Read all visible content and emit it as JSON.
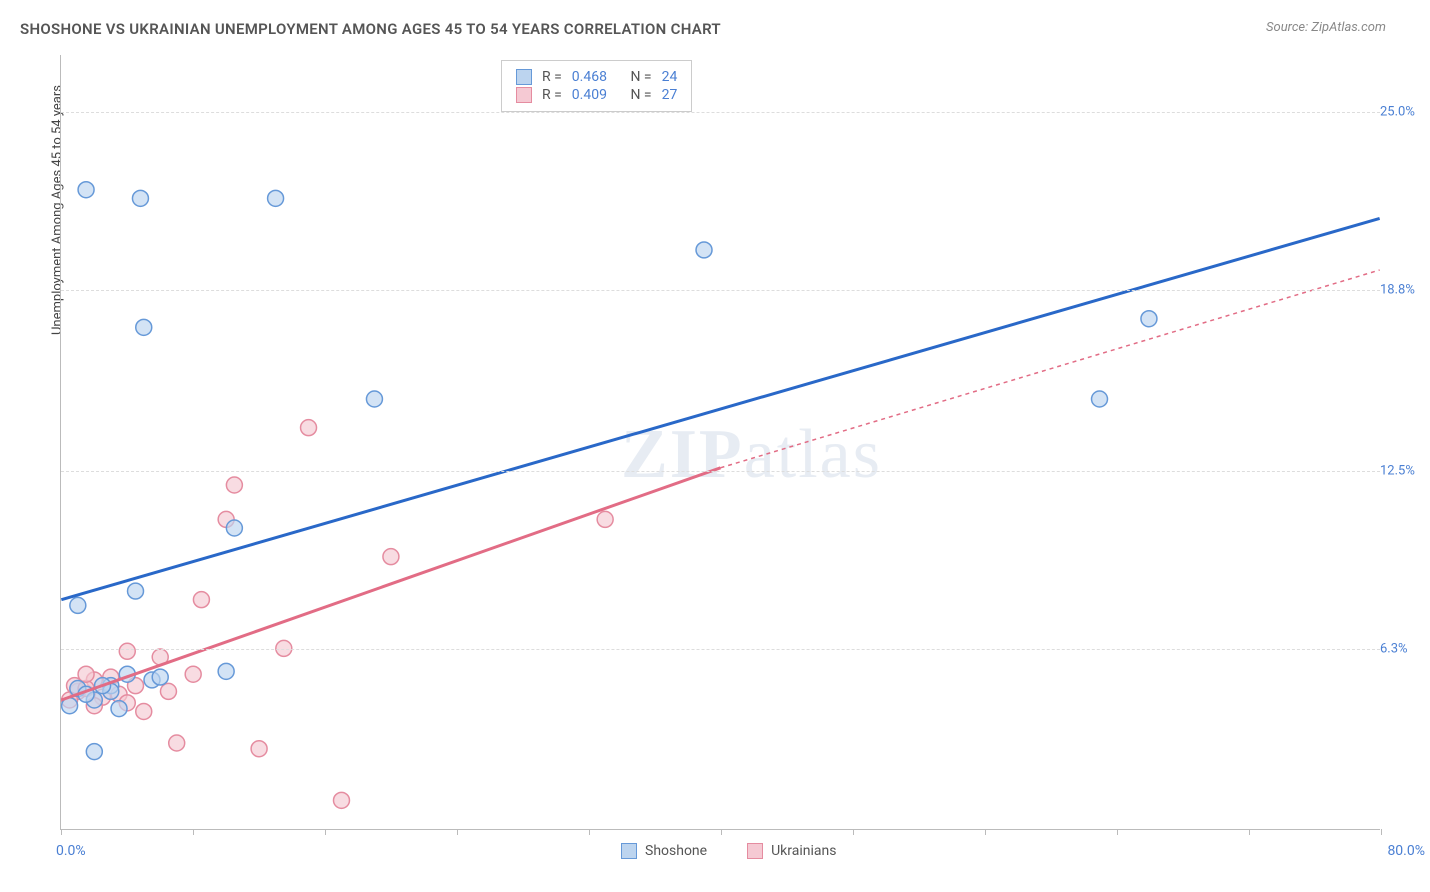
{
  "header": {
    "title": "SHOSHONE VS UKRAINIAN UNEMPLOYMENT AMONG AGES 45 TO 54 YEARS CORRELATION CHART",
    "source": "Source: ZipAtlas.com"
  },
  "y_axis_label": "Unemployment Among Ages 45 to 54 years",
  "chart": {
    "type": "scatter",
    "xlim": [
      0,
      80
    ],
    "ylim": [
      0,
      27
    ],
    "x_limit_labels": {
      "min": "0.0%",
      "max": "80.0%"
    },
    "y_ticks": [
      {
        "val": 6.3,
        "label": "6.3%"
      },
      {
        "val": 12.5,
        "label": "12.5%"
      },
      {
        "val": 18.8,
        "label": "18.8%"
      },
      {
        "val": 25.0,
        "label": "25.0%"
      }
    ],
    "x_tick_positions": [
      0,
      8,
      16,
      24,
      32,
      40,
      48,
      56,
      64,
      72,
      80
    ],
    "grid_color": "#dddddd",
    "background_color": "#ffffff",
    "marker_radius": 8,
    "marker_stroke_width": 1.5,
    "trend_line_width": 3,
    "series": {
      "shoshone": {
        "label": "Shoshone",
        "fill": "#bcd4ef",
        "stroke": "#6699d8",
        "line_color": "#2968c8",
        "line_dash": "none",
        "stats": {
          "R": "0.468",
          "N": "24"
        },
        "trend": {
          "x1": 0,
          "y1": 8.0,
          "x2": 80,
          "y2": 21.3
        },
        "points": [
          [
            1.5,
            22.3
          ],
          [
            4.8,
            22.0
          ],
          [
            13.0,
            22.0
          ],
          [
            5.0,
            17.5
          ],
          [
            19.0,
            15.0
          ],
          [
            39.0,
            20.2
          ],
          [
            66.0,
            17.8
          ],
          [
            63.0,
            15.0
          ],
          [
            10.5,
            10.5
          ],
          [
            1.0,
            7.8
          ],
          [
            4.5,
            8.3
          ],
          [
            10.0,
            5.5
          ],
          [
            3.0,
            5.0
          ],
          [
            5.5,
            5.2
          ],
          [
            2.0,
            4.5
          ],
          [
            3.5,
            4.2
          ],
          [
            2.0,
            2.7
          ],
          [
            1.0,
            4.9
          ],
          [
            1.5,
            4.7
          ],
          [
            3.0,
            4.8
          ],
          [
            2.5,
            5.0
          ],
          [
            0.5,
            4.3
          ],
          [
            4.0,
            5.4
          ],
          [
            6.0,
            5.3
          ]
        ]
      },
      "ukrainians": {
        "label": "Ukrainians",
        "fill": "#f5c9d3",
        "stroke": "#e58ca0",
        "line_color": "#e26c85",
        "line_dash": "4,4",
        "stats": {
          "R": "0.409",
          "N": "27"
        },
        "trend_solid": {
          "x1": 0,
          "y1": 4.5,
          "x2": 40,
          "y2": 12.6
        },
        "trend_dashed": {
          "x1": 40,
          "y1": 12.6,
          "x2": 80,
          "y2": 19.5
        },
        "points": [
          [
            15.0,
            14.0
          ],
          [
            10.5,
            12.0
          ],
          [
            10.0,
            10.8
          ],
          [
            20.0,
            9.5
          ],
          [
            33.0,
            10.8
          ],
          [
            8.5,
            8.0
          ],
          [
            13.5,
            6.3
          ],
          [
            4.0,
            6.2
          ],
          [
            6.0,
            6.0
          ],
          [
            12.0,
            2.8
          ],
          [
            7.0,
            3.0
          ],
          [
            17.0,
            1.0
          ],
          [
            3.0,
            5.3
          ],
          [
            4.5,
            5.0
          ],
          [
            2.0,
            5.2
          ],
          [
            1.0,
            4.8
          ],
          [
            2.5,
            4.6
          ],
          [
            0.8,
            5.0
          ],
          [
            1.5,
            4.9
          ],
          [
            3.5,
            4.7
          ],
          [
            2.0,
            4.3
          ],
          [
            0.5,
            4.5
          ],
          [
            4.0,
            4.4
          ],
          [
            5.0,
            4.1
          ],
          [
            6.5,
            4.8
          ],
          [
            8.0,
            5.4
          ],
          [
            1.5,
            5.4
          ]
        ]
      }
    }
  },
  "stats_box": {
    "R_label": "R =",
    "N_label": "N ="
  },
  "watermark": {
    "zip": "ZIP",
    "atlas": "atlas"
  }
}
